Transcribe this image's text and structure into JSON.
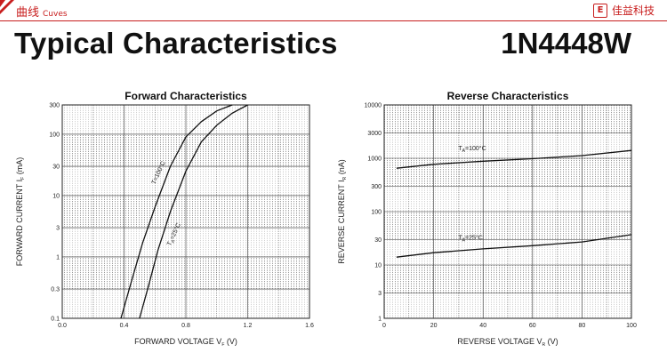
{
  "header": {
    "section_title": "曲线",
    "section_subtitle": "Cuves",
    "brand_logo": "E",
    "brand_name": "佳益科技",
    "main_title": "Typical Characteristics",
    "part_number": "1N4448W",
    "accent_color": "#c81e1e"
  },
  "chart_data": [
    {
      "type": "line",
      "title": "Forward    Characteristics",
      "xlabel": "FORWARD VOLTAGE",
      "xlabel_sub": "F",
      "xlabel_unit": "(V)",
      "ylabel": "FORWARD CURRENT",
      "ylabel_sub": "F",
      "ylabel_unit": "(mA)",
      "y_scale": "log",
      "xlim": [
        0,
        1.6
      ],
      "ylim": [
        0.1,
        300
      ],
      "x_ticks": [
        "0.0",
        "0.4",
        "0.8",
        "1.2",
        "1.6"
      ],
      "y_ticks": [
        "0.1",
        "0.3",
        "1",
        "3",
        "10",
        "30",
        "100",
        "300"
      ],
      "grid": true,
      "series": [
        {
          "name": "T=100°C",
          "x": [
            0.38,
            0.45,
            0.52,
            0.6,
            0.7,
            0.8,
            0.9,
            1.0,
            1.1
          ],
          "y": [
            0.1,
            0.42,
            1.7,
            6.5,
            30,
            90,
            160,
            240,
            300
          ]
        },
        {
          "name": "T=25°C",
          "x": [
            0.5,
            0.56,
            0.62,
            0.7,
            0.8,
            0.9,
            1.0,
            1.1,
            1.2
          ],
          "y": [
            0.1,
            0.35,
            1.3,
            5.5,
            25,
            75,
            140,
            220,
            300
          ]
        }
      ],
      "labels": [
        {
          "text": "T",
          "sub": "",
          "suffix": "=100°C",
          "x": 0.6,
          "y": 15,
          "rotate": -65
        },
        {
          "text": "T",
          "sub": "A",
          "suffix": "=25°C",
          "x": 0.7,
          "y": 1.5,
          "rotate": -65
        }
      ]
    },
    {
      "type": "line",
      "title": "Reverse    Characteristics",
      "xlabel": "REVERSE VOLTAGE",
      "xlabel_sub": "R",
      "xlabel_unit": "(V)",
      "ylabel": "REVERSE CURRENT",
      "ylabel_sub": "R",
      "ylabel_unit": "(nA)",
      "y_scale": "log",
      "xlim": [
        0,
        100
      ],
      "ylim": [
        1,
        10000
      ],
      "x_ticks": [
        "0",
        "20",
        "40",
        "60",
        "80",
        "100"
      ],
      "y_ticks": [
        "1",
        "3",
        "10",
        "30",
        "100",
        "300",
        "1000",
        "3000",
        "10000"
      ],
      "grid": true,
      "series": [
        {
          "name": "T=100°C",
          "x": [
            5,
            20,
            40,
            60,
            80,
            100
          ],
          "y": [
            650,
            770,
            880,
            980,
            1120,
            1400
          ]
        },
        {
          "name": "T=25°C",
          "x": [
            5,
            20,
            40,
            60,
            80,
            100
          ],
          "y": [
            14,
            17,
            20,
            23,
            27,
            37
          ]
        }
      ],
      "labels": [
        {
          "text": "T",
          "sub": "A",
          "suffix": "=100°C",
          "x": 30,
          "y": 1400,
          "rotate": 0
        },
        {
          "text": "T",
          "sub": "A",
          "suffix": "=25°C",
          "x": 30,
          "y": 30,
          "rotate": 0
        }
      ]
    }
  ]
}
